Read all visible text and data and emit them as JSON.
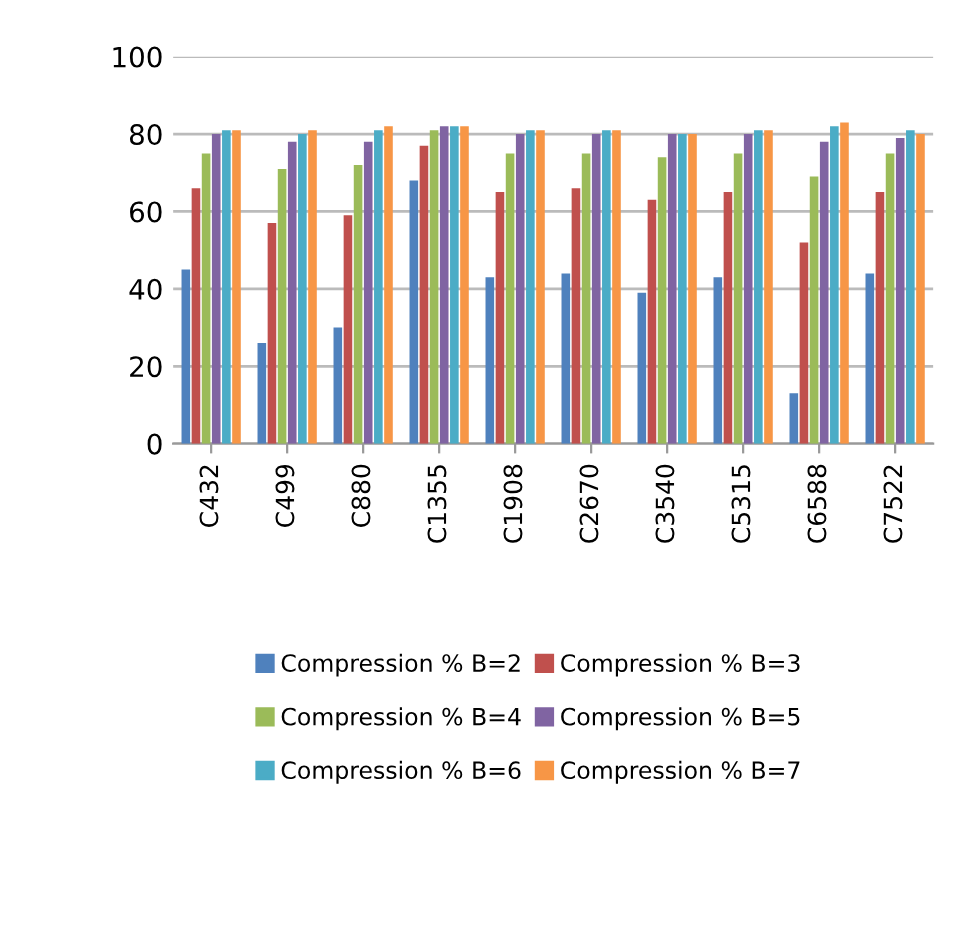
{
  "chart_data": {
    "type": "bar",
    "categories": [
      "C432",
      "C499",
      "C880",
      "C1355",
      "C1908",
      "C2670",
      "C3540",
      "C5315",
      "C6588",
      "C7522"
    ],
    "series": [
      {
        "name": "Compression % B=2",
        "color": "#4f81bd",
        "values": [
          45,
          26,
          30,
          68,
          43,
          44,
          39,
          43,
          13,
          44
        ]
      },
      {
        "name": "Compression % B=3",
        "color": "#c0504d",
        "values": [
          66,
          57,
          59,
          77,
          65,
          66,
          63,
          65,
          52,
          65
        ]
      },
      {
        "name": "Compression % B=4",
        "color": "#9bbb59",
        "values": [
          75,
          71,
          72,
          81,
          75,
          75,
          74,
          75,
          69,
          75
        ]
      },
      {
        "name": "Compression % B=5",
        "color": "#8064a2",
        "values": [
          80,
          78,
          78,
          82,
          80,
          80,
          80,
          80,
          78,
          79
        ]
      },
      {
        "name": "Compression % B=6",
        "color": "#4bacc6",
        "values": [
          81,
          80,
          81,
          82,
          81,
          81,
          80,
          81,
          82,
          81
        ]
      },
      {
        "name": "Compression % B=7",
        "color": "#f79646",
        "values": [
          81,
          81,
          82,
          82,
          81,
          81,
          80,
          81,
          83,
          80
        ]
      }
    ],
    "ylim": [
      0,
      100
    ],
    "yticks": [
      0,
      20,
      40,
      60,
      80,
      100
    ],
    "grid": "y",
    "legend": "bottom"
  }
}
